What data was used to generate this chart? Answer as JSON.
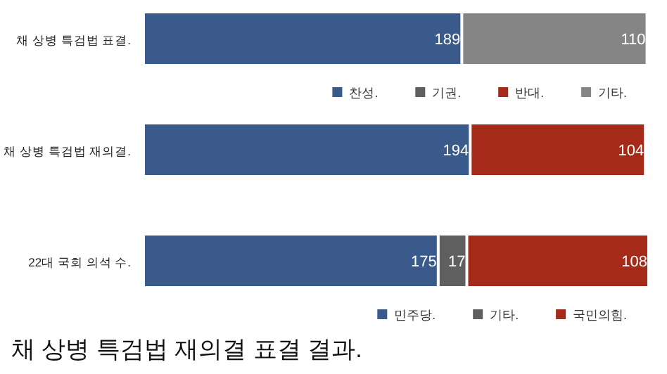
{
  "chart_data": [
    {
      "type": "bar",
      "orientation": "horizontal",
      "stacked": true,
      "categories": [
        "채 상병 특검법 표결."
      ],
      "xlim": [
        0,
        300
      ],
      "tick_labels": false,
      "data_labels": true,
      "legend": "bottom right",
      "series": [
        {
          "name": "찬성.",
          "color": "#3a5a8c",
          "values": [
            189
          ]
        },
        {
          "name": "기권.",
          "color": "#5f5f5f",
          "values": [
            null
          ]
        },
        {
          "name": "반대.",
          "color": "#a52a1a",
          "values": [
            null
          ]
        },
        {
          "name": "기타.",
          "color": "#858585",
          "values": [
            110
          ]
        }
      ]
    },
    {
      "type": "bar",
      "orientation": "horizontal",
      "stacked": true,
      "categories": [
        "채 상병 특검법 재의결."
      ],
      "xlim": [
        0,
        300
      ],
      "tick_labels": false,
      "data_labels": true,
      "series": [
        {
          "color": "#3a5a8c",
          "values": [
            194
          ]
        },
        {
          "color": "#a52a1a",
          "values": [
            104
          ]
        }
      ]
    },
    {
      "type": "bar",
      "orientation": "horizontal",
      "stacked": true,
      "title": "채 상병 특검법 재의결 표결 결과.",
      "categories": [
        "22대 국회 의석 수."
      ],
      "xlim": [
        0,
        300
      ],
      "tick_labels": false,
      "data_labels": true,
      "legend": "bottom right",
      "series": [
        {
          "name": "민주당.",
          "color": "#3a5a8c",
          "values": [
            175
          ]
        },
        {
          "name": "기타.",
          "color": "#5f5f5f",
          "values": [
            17
          ]
        },
        {
          "name": "국민의힘.",
          "color": "#a52a1a",
          "values": [
            108
          ]
        }
      ]
    }
  ]
}
